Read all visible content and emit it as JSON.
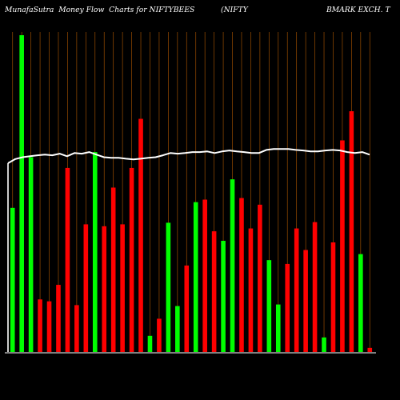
{
  "chart_data": {
    "type": "bar",
    "title_parts": [
      "MunafaSutra  Money Flow  Charts for NIFTYBEES",
      "(NIFTY",
      "BMARK EXCH. T"
    ],
    "x_tick_labels": [],
    "ylim": [
      0,
      100
    ],
    "bars": [
      {
        "value": 45.5,
        "color": "#00ff00"
      },
      {
        "value": 100.0,
        "color": "#00ff00"
      },
      {
        "value": 61.5,
        "color": "#00ff00"
      },
      {
        "value": 16.6,
        "color": "#ff0000"
      },
      {
        "value": 16.0,
        "color": "#ff0000"
      },
      {
        "value": 21.2,
        "color": "#ff0000"
      },
      {
        "value": 58.1,
        "color": "#ff0000"
      },
      {
        "value": 14.8,
        "color": "#ff0000"
      },
      {
        "value": 40.3,
        "color": "#ff0000"
      },
      {
        "value": 63.1,
        "color": "#00ff00"
      },
      {
        "value": 39.7,
        "color": "#ff0000"
      },
      {
        "value": 51.9,
        "color": "#ff0000"
      },
      {
        "value": 40.3,
        "color": "#ff0000"
      },
      {
        "value": 58.1,
        "color": "#ff0000"
      },
      {
        "value": 73.6,
        "color": "#ff0000"
      },
      {
        "value": 5.1,
        "color": "#00ff00"
      },
      {
        "value": 10.5,
        "color": "#ff0000"
      },
      {
        "value": 40.8,
        "color": "#00ff00"
      },
      {
        "value": 14.5,
        "color": "#00ff00"
      },
      {
        "value": 27.3,
        "color": "#ff0000"
      },
      {
        "value": 47.3,
        "color": "#00ff00"
      },
      {
        "value": 48.1,
        "color": "#ff0000"
      },
      {
        "value": 38.1,
        "color": "#ff0000"
      },
      {
        "value": 35.1,
        "color": "#00ff00"
      },
      {
        "value": 54.5,
        "color": "#00ff00"
      },
      {
        "value": 48.6,
        "color": "#ff0000"
      },
      {
        "value": 39.0,
        "color": "#ff0000"
      },
      {
        "value": 46.5,
        "color": "#ff0000"
      },
      {
        "value": 29.0,
        "color": "#00ff00"
      },
      {
        "value": 15.0,
        "color": "#00ff00"
      },
      {
        "value": 27.8,
        "color": "#ff0000"
      },
      {
        "value": 39.0,
        "color": "#ff0000"
      },
      {
        "value": 32.2,
        "color": "#ff0000"
      },
      {
        "value": 41.0,
        "color": "#ff0000"
      },
      {
        "value": 4.6,
        "color": "#00ff00"
      },
      {
        "value": 34.6,
        "color": "#ff0000"
      },
      {
        "value": 66.8,
        "color": "#ff0000"
      },
      {
        "value": 76.0,
        "color": "#ff0000"
      },
      {
        "value": 30.9,
        "color": "#00ff00"
      },
      {
        "value": 1.3,
        "color": "#ff0000"
      }
    ],
    "line_values": [
      59.6,
      60.9,
      61.5,
      61.8,
      62.1,
      62.3,
      62.1,
      62.6,
      61.8,
      62.8,
      62.6,
      63.1,
      62.3,
      61.5,
      61.3,
      61.3,
      61.0,
      60.8,
      61.0,
      61.3,
      61.5,
      62.1,
      62.8,
      62.6,
      62.8,
      63.1,
      63.1,
      63.3,
      62.8,
      63.3,
      63.6,
      63.3,
      63.1,
      62.8,
      62.8,
      63.8,
      64.1,
      64.1,
      64.1,
      63.8,
      63.6,
      63.3,
      63.3,
      63.6,
      63.8,
      63.6,
      63.1,
      62.8,
      63.1,
      62.3
    ],
    "colors": {
      "background": "#000000",
      "up": "#00ff00",
      "down": "#ff0000",
      "line": "#ffffff",
      "grid": "#cc6600",
      "axis": "#ffffff"
    },
    "grid": true
  }
}
